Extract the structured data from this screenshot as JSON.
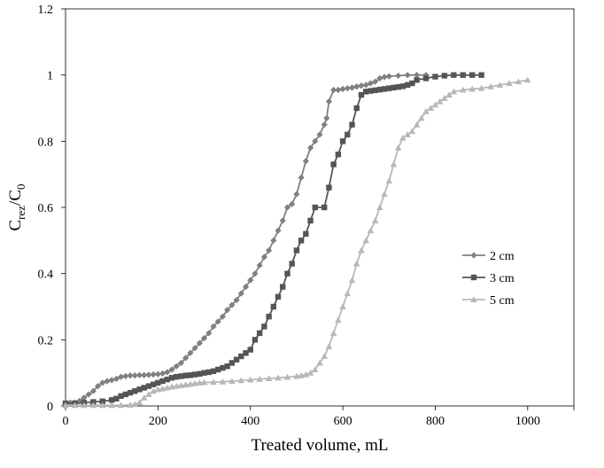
{
  "chart_data": {
    "type": "line",
    "xlabel": "Treated volume, mL",
    "ylabel": {
      "main": "C",
      "sub1": "rez",
      "sep": "/C",
      "sub2": "0"
    },
    "xlim": [
      0,
      1100
    ],
    "ylim": [
      0,
      1.2
    ],
    "x_ticks": [
      "0",
      "200",
      "400",
      "600",
      "800",
      "1000"
    ],
    "x_tick_values": [
      0,
      200,
      400,
      600,
      800,
      1000
    ],
    "y_ticks": [
      "0",
      "0.2",
      "0.4",
      "0.6",
      "0.8",
      "1",
      "1.2"
    ],
    "y_tick_values": [
      0,
      0.2,
      0.4,
      0.6,
      0.8,
      1.0,
      1.2
    ],
    "grid": false,
    "legend_position": "right",
    "series": [
      {
        "name": "2 cm",
        "marker": "diamond",
        "color": "#808080",
        "points": [
          [
            0,
            0.008
          ],
          [
            10,
            0.01
          ],
          [
            20,
            0.01
          ],
          [
            30,
            0.015
          ],
          [
            40,
            0.025
          ],
          [
            50,
            0.035
          ],
          [
            60,
            0.045
          ],
          [
            70,
            0.06
          ],
          [
            80,
            0.07
          ],
          [
            90,
            0.075
          ],
          [
            100,
            0.078
          ],
          [
            110,
            0.082
          ],
          [
            120,
            0.088
          ],
          [
            130,
            0.09
          ],
          [
            140,
            0.092
          ],
          [
            150,
            0.092
          ],
          [
            160,
            0.093
          ],
          [
            170,
            0.093
          ],
          [
            180,
            0.094
          ],
          [
            190,
            0.095
          ],
          [
            200,
            0.096
          ],
          [
            210,
            0.098
          ],
          [
            220,
            0.102
          ],
          [
            230,
            0.11
          ],
          [
            240,
            0.12
          ],
          [
            250,
            0.13
          ],
          [
            260,
            0.145
          ],
          [
            270,
            0.16
          ],
          [
            280,
            0.175
          ],
          [
            290,
            0.19
          ],
          [
            300,
            0.205
          ],
          [
            310,
            0.22
          ],
          [
            320,
            0.24
          ],
          [
            330,
            0.255
          ],
          [
            340,
            0.27
          ],
          [
            350,
            0.29
          ],
          [
            360,
            0.305
          ],
          [
            370,
            0.32
          ],
          [
            380,
            0.34
          ],
          [
            390,
            0.36
          ],
          [
            400,
            0.38
          ],
          [
            410,
            0.4
          ],
          [
            420,
            0.425
          ],
          [
            430,
            0.45
          ],
          [
            440,
            0.47
          ],
          [
            450,
            0.5
          ],
          [
            460,
            0.53
          ],
          [
            470,
            0.56
          ],
          [
            480,
            0.6
          ],
          [
            490,
            0.61
          ],
          [
            500,
            0.64
          ],
          [
            510,
            0.69
          ],
          [
            520,
            0.74
          ],
          [
            530,
            0.78
          ],
          [
            540,
            0.8
          ],
          [
            550,
            0.82
          ],
          [
            560,
            0.85
          ],
          [
            565,
            0.87
          ],
          [
            570,
            0.92
          ],
          [
            580,
            0.955
          ],
          [
            590,
            0.955
          ],
          [
            600,
            0.958
          ],
          [
            610,
            0.96
          ],
          [
            620,
            0.962
          ],
          [
            630,
            0.965
          ],
          [
            640,
            0.968
          ],
          [
            650,
            0.97
          ],
          [
            660,
            0.975
          ],
          [
            670,
            0.98
          ],
          [
            680,
            0.99
          ],
          [
            690,
            0.994
          ],
          [
            700,
            0.996
          ],
          [
            720,
            0.998
          ],
          [
            740,
            1.0
          ],
          [
            760,
            1.0
          ],
          [
            780,
            1.0
          ]
        ]
      },
      {
        "name": "3 cm",
        "marker": "square",
        "color": "#555555",
        "points": [
          [
            0,
            0.008
          ],
          [
            20,
            0.008
          ],
          [
            40,
            0.01
          ],
          [
            60,
            0.012
          ],
          [
            80,
            0.014
          ],
          [
            100,
            0.018
          ],
          [
            110,
            0.022
          ],
          [
            120,
            0.03
          ],
          [
            130,
            0.035
          ],
          [
            140,
            0.04
          ],
          [
            150,
            0.045
          ],
          [
            160,
            0.05
          ],
          [
            170,
            0.055
          ],
          [
            180,
            0.06
          ],
          [
            190,
            0.065
          ],
          [
            200,
            0.07
          ],
          [
            210,
            0.075
          ],
          [
            220,
            0.08
          ],
          [
            230,
            0.085
          ],
          [
            240,
            0.088
          ],
          [
            250,
            0.09
          ],
          [
            260,
            0.092
          ],
          [
            270,
            0.093
          ],
          [
            280,
            0.095
          ],
          [
            290,
            0.097
          ],
          [
            300,
            0.1
          ],
          [
            310,
            0.102
          ],
          [
            320,
            0.105
          ],
          [
            330,
            0.11
          ],
          [
            340,
            0.115
          ],
          [
            350,
            0.12
          ],
          [
            360,
            0.13
          ],
          [
            370,
            0.14
          ],
          [
            380,
            0.15
          ],
          [
            390,
            0.16
          ],
          [
            400,
            0.17
          ],
          [
            410,
            0.2
          ],
          [
            420,
            0.22
          ],
          [
            430,
            0.24
          ],
          [
            440,
            0.27
          ],
          [
            450,
            0.3
          ],
          [
            460,
            0.33
          ],
          [
            470,
            0.36
          ],
          [
            480,
            0.4
          ],
          [
            490,
            0.43
          ],
          [
            500,
            0.47
          ],
          [
            510,
            0.5
          ],
          [
            520,
            0.52
          ],
          [
            530,
            0.56
          ],
          [
            540,
            0.6
          ],
          [
            560,
            0.6
          ],
          [
            570,
            0.66
          ],
          [
            580,
            0.73
          ],
          [
            590,
            0.76
          ],
          [
            600,
            0.8
          ],
          [
            610,
            0.82
          ],
          [
            620,
            0.85
          ],
          [
            630,
            0.9
          ],
          [
            640,
            0.94
          ],
          [
            650,
            0.95
          ],
          [
            660,
            0.952
          ],
          [
            670,
            0.954
          ],
          [
            680,
            0.956
          ],
          [
            690,
            0.958
          ],
          [
            700,
            0.96
          ],
          [
            710,
            0.962
          ],
          [
            720,
            0.964
          ],
          [
            730,
            0.966
          ],
          [
            740,
            0.97
          ],
          [
            750,
            0.975
          ],
          [
            760,
            0.985
          ],
          [
            780,
            0.99
          ],
          [
            800,
            0.995
          ],
          [
            820,
            0.998
          ],
          [
            840,
            1.0
          ],
          [
            860,
            1.0
          ],
          [
            880,
            1.0
          ],
          [
            900,
            1.0
          ]
        ]
      },
      {
        "name": "5 cm",
        "marker": "triangle",
        "color": "#b8b8b8",
        "points": [
          [
            0,
            0.002
          ],
          [
            20,
            0.002
          ],
          [
            40,
            0.002
          ],
          [
            60,
            0.002
          ],
          [
            80,
            0.002
          ],
          [
            100,
            0.002
          ],
          [
            120,
            0.002
          ],
          [
            140,
            0.003
          ],
          [
            150,
            0.005
          ],
          [
            160,
            0.01
          ],
          [
            170,
            0.025
          ],
          [
            180,
            0.035
          ],
          [
            190,
            0.045
          ],
          [
            200,
            0.05
          ],
          [
            210,
            0.052
          ],
          [
            220,
            0.055
          ],
          [
            230,
            0.058
          ],
          [
            240,
            0.06
          ],
          [
            250,
            0.062
          ],
          [
            260,
            0.064
          ],
          [
            270,
            0.066
          ],
          [
            280,
            0.068
          ],
          [
            290,
            0.07
          ],
          [
            300,
            0.071
          ],
          [
            320,
            0.072
          ],
          [
            340,
            0.073
          ],
          [
            360,
            0.075
          ],
          [
            380,
            0.077
          ],
          [
            400,
            0.079
          ],
          [
            420,
            0.081
          ],
          [
            440,
            0.083
          ],
          [
            460,
            0.085
          ],
          [
            480,
            0.087
          ],
          [
            500,
            0.09
          ],
          [
            510,
            0.092
          ],
          [
            520,
            0.095
          ],
          [
            530,
            0.1
          ],
          [
            540,
            0.11
          ],
          [
            550,
            0.13
          ],
          [
            560,
            0.15
          ],
          [
            570,
            0.18
          ],
          [
            580,
            0.22
          ],
          [
            590,
            0.26
          ],
          [
            600,
            0.3
          ],
          [
            610,
            0.34
          ],
          [
            620,
            0.38
          ],
          [
            630,
            0.43
          ],
          [
            640,
            0.47
          ],
          [
            650,
            0.5
          ],
          [
            660,
            0.53
          ],
          [
            670,
            0.56
          ],
          [
            680,
            0.6
          ],
          [
            690,
            0.64
          ],
          [
            700,
            0.68
          ],
          [
            710,
            0.73
          ],
          [
            720,
            0.78
          ],
          [
            730,
            0.81
          ],
          [
            740,
            0.82
          ],
          [
            750,
            0.83
          ],
          [
            760,
            0.85
          ],
          [
            770,
            0.87
          ],
          [
            780,
            0.89
          ],
          [
            790,
            0.9
          ],
          [
            800,
            0.91
          ],
          [
            810,
            0.92
          ],
          [
            820,
            0.93
          ],
          [
            830,
            0.94
          ],
          [
            840,
            0.95
          ],
          [
            860,
            0.955
          ],
          [
            880,
            0.958
          ],
          [
            900,
            0.96
          ],
          [
            920,
            0.965
          ],
          [
            940,
            0.97
          ],
          [
            960,
            0.975
          ],
          [
            980,
            0.98
          ],
          [
            1000,
            0.985
          ]
        ]
      }
    ]
  }
}
